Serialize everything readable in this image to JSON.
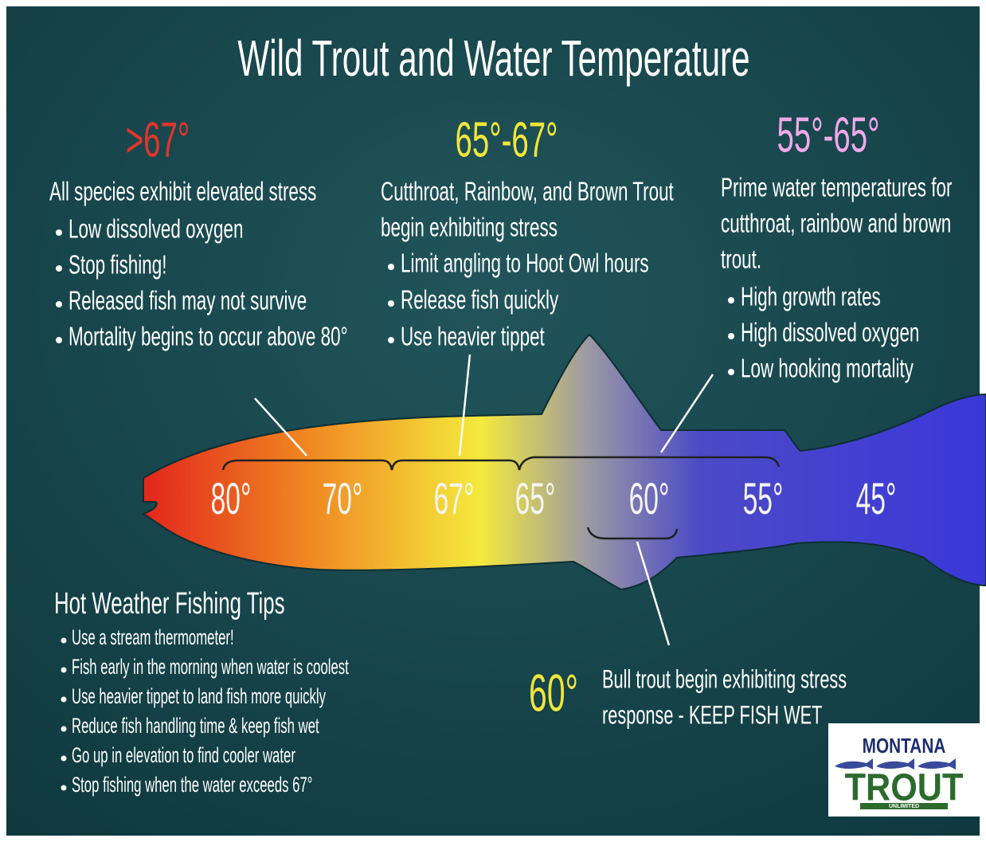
{
  "title": "Wild Trout and Water Temperature",
  "sections": [
    {
      "heading": ">67°",
      "intro": [
        "All species exhibit elevated stress"
      ],
      "bullets": [
        "Low dissolved oxygen",
        "Stop fishing!",
        "Released fish may not survive",
        "Mortality begins to occur above 80°"
      ]
    },
    {
      "heading": "65°-67°",
      "intro": [
        "Cutthroat, Rainbow, and Brown Trout",
        "begin exhibiting stress"
      ],
      "bullets": [
        "Limit angling to Hoot Owl hours",
        "Release fish quickly",
        "Use heavier tippet"
      ]
    },
    {
      "heading": "55°-65°",
      "intro": [
        "Prime water temperatures for",
        "cutthroat, rainbow and brown",
        "trout."
      ],
      "bullets": [
        "High growth rates",
        "High dissolved oxygen",
        "Low hooking mortality"
      ]
    }
  ],
  "scale": [
    "80°",
    "70°",
    "67°",
    "65°",
    "60°",
    "55°",
    "45°"
  ],
  "tips": {
    "heading": "Hot Weather Fishing Tips",
    "bullets": [
      "Use a stream thermometer!",
      "Fish early in the morning when water is coolest",
      "Use heavier tippet to land fish more quickly",
      "Reduce fish handling time & keep fish wet",
      "Go up in elevation to find cooler water",
      "Stop fishing when the water exceeds 67°"
    ]
  },
  "bull_trout": {
    "temperature": "60°",
    "text": [
      "Bull trout begin exhibiting stress",
      "response - KEEP FISH WET"
    ]
  },
  "logo": {
    "line1": "MONTANA",
    "line2": "TROUT",
    "line3": "UNLIMITED"
  }
}
